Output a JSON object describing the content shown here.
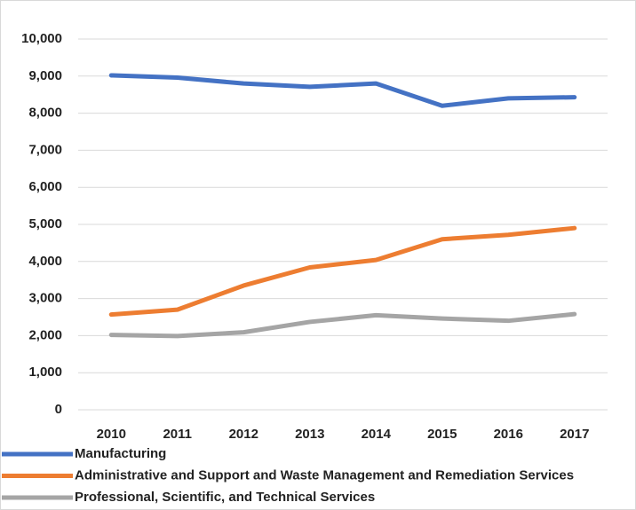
{
  "chart_data": {
    "type": "line",
    "categories": [
      "2010",
      "2011",
      "2012",
      "2013",
      "2014",
      "2015",
      "2016",
      "2017"
    ],
    "series": [
      {
        "name": "Manufacturing",
        "color": "#4472c4",
        "values": [
          9020,
          8960,
          8800,
          8710,
          8800,
          8200,
          8400,
          8430
        ]
      },
      {
        "name": "Administrative and Support and Waste Management and Remediation Services",
        "color": "#ed7d31",
        "values": [
          2570,
          2700,
          3350,
          3840,
          4040,
          4600,
          4720,
          4900
        ]
      },
      {
        "name": "Professional, Scientific, and Technical Services",
        "color": "#a5a5a5",
        "values": [
          2020,
          1990,
          2090,
          2370,
          2550,
          2460,
          2400,
          2580
        ]
      }
    ],
    "ylim": [
      0,
      10000
    ],
    "yticks": [
      0,
      {
        "value": 1000,
        "label": "1,000"
      },
      {
        "value": 2000,
        "label": "2,000"
      },
      {
        "value": 3000,
        "label": "3,000"
      },
      {
        "value": 4000,
        "label": "4,000"
      },
      {
        "value": 5000,
        "label": "5,000"
      },
      {
        "value": 6000,
        "label": "6,000"
      },
      {
        "value": 7000,
        "label": "7,000"
      },
      {
        "value": 8000,
        "label": "8,000"
      },
      {
        "value": 9000,
        "label": "9,000"
      },
      {
        "value": 10000,
        "label": "10,000"
      }
    ],
    "grid": true,
    "legend": "bottom"
  }
}
